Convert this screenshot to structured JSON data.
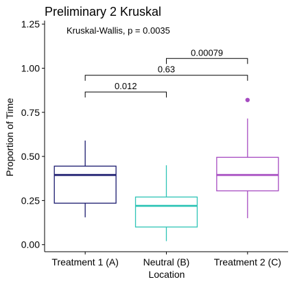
{
  "chart_data": {
    "type": "boxplot",
    "title": "Preliminary 2 Kruskal",
    "xlabel": "Location",
    "ylabel": "Proportion of Time",
    "ylim": [
      -0.04,
      1.27
    ],
    "yticks": [
      "0.00",
      "0.25",
      "0.50",
      "0.75",
      "1.00",
      "1.25"
    ],
    "ytick_values": [
      0,
      0.25,
      0.5,
      0.75,
      1.0,
      1.25
    ],
    "grid": false,
    "annotation": "Kruskal-Wallis, p = 0.0035",
    "categories": [
      "Treatment 1 (A)",
      "Neutral (B)",
      "Treatment 2 (C)"
    ],
    "boxes": [
      {
        "category": "Treatment 1 (A)",
        "color": "#1a1a6e",
        "whisker_low": 0.155,
        "q1": 0.235,
        "median": 0.395,
        "q3": 0.445,
        "whisker_high": 0.59,
        "outliers": []
      },
      {
        "category": "Neutral (B)",
        "color": "#2ec4b6",
        "whisker_low": 0.02,
        "q1": 0.1,
        "median": 0.22,
        "q3": 0.27,
        "whisker_high": 0.45,
        "outliers": []
      },
      {
        "category": "Treatment 2 (C)",
        "color": "#a64bc1",
        "whisker_low": 0.15,
        "q1": 0.305,
        "median": 0.395,
        "q3": 0.495,
        "whisker_high": 0.715,
        "outliers": [
          0.82
        ]
      }
    ],
    "comparisons": [
      {
        "from": 0,
        "to": 1,
        "y": 0.865,
        "label": "0.012"
      },
      {
        "from": 0,
        "to": 2,
        "y": 0.96,
        "label": "0.63"
      },
      {
        "from": 1,
        "to": 2,
        "y": 1.055,
        "label": "0.00079"
      }
    ]
  }
}
